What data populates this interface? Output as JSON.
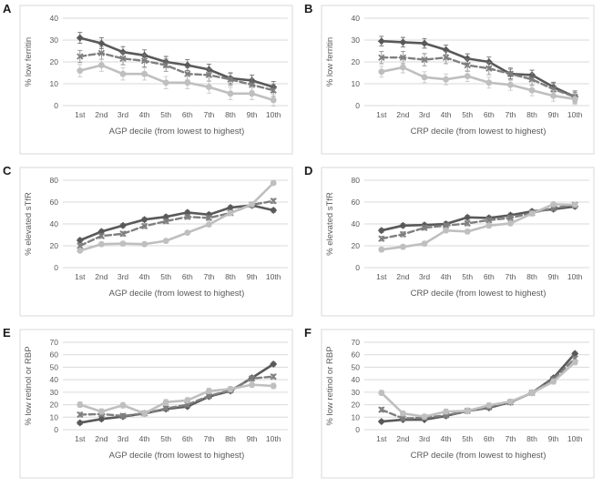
{
  "figure_background": "#ffffff",
  "palette": {
    "series_dark": "#595959",
    "series_medium": "#7f7f7f",
    "series_light": "#bfbfbf",
    "gridline": "#d9d9d9",
    "chart_border": "#d9d9d9",
    "axis_text": "#595959",
    "panel_letter": "#1a1a1a"
  },
  "chart_data": [
    {
      "type": "line",
      "panel": "A",
      "xlabel": "AGP decile (from lowest to highest)",
      "ylabel": "% low ferritin",
      "ylim": [
        0,
        40
      ],
      "yticks": [
        0,
        10,
        20,
        30,
        40
      ],
      "grid": true,
      "legend": "none",
      "categories": [
        "1st",
        "2nd",
        "3rd",
        "4th",
        "5th",
        "6th",
        "7th",
        "8th",
        "9th",
        "10th"
      ],
      "series": [
        {
          "name": "series-1-dark-solid",
          "color": "#595959",
          "dash": "solid",
          "marker": "diamond",
          "err": 2.5,
          "values": [
            31,
            28.5,
            24.5,
            23,
            20,
            18.5,
            16.5,
            12.5,
            11.5,
            8.5
          ]
        },
        {
          "name": "series-2-medium-dashed",
          "color": "#7f7f7f",
          "dash": "dashed",
          "marker": "x",
          "err": 2.8,
          "values": [
            22.5,
            24,
            21.5,
            20.5,
            18.5,
            14.5,
            14,
            12,
            9.5,
            7
          ]
        },
        {
          "name": "series-3-light-solid",
          "color": "#bfbfbf",
          "dash": "solid",
          "marker": "circle",
          "err": 2.8,
          "values": [
            16,
            18.5,
            14.5,
            14.5,
            10.5,
            10.5,
            8.5,
            5.5,
            5.5,
            2.5
          ]
        }
      ]
    },
    {
      "type": "line",
      "panel": "B",
      "xlabel": "CRP decile (from lowest to highest)",
      "ylabel": "% low ferritin",
      "ylim": [
        0,
        40
      ],
      "yticks": [
        0,
        10,
        20,
        30,
        40
      ],
      "grid": true,
      "legend": "none",
      "categories": [
        "1st",
        "2nd",
        "3rd",
        "4th",
        "5th",
        "6th",
        "7th",
        "8th",
        "9th",
        "10th"
      ],
      "series": [
        {
          "name": "series-1-dark-solid",
          "color": "#595959",
          "dash": "solid",
          "marker": "diamond",
          "err": 2.2,
          "values": [
            29.5,
            29,
            28.5,
            25.5,
            21.5,
            20,
            14.5,
            14,
            8.5,
            4
          ]
        },
        {
          "name": "series-2-medium-dashed",
          "color": "#7f7f7f",
          "dash": "dashed",
          "marker": "x",
          "err": 2.8,
          "values": [
            22,
            22,
            21,
            22,
            18.5,
            17,
            14.5,
            12,
            7.5,
            4
          ]
        },
        {
          "name": "series-3-light-solid",
          "color": "#bfbfbf",
          "dash": "solid",
          "marker": "circle",
          "err": 2.5,
          "values": [
            15.5,
            17.5,
            13,
            12,
            13.5,
            10.5,
            9.5,
            7,
            4.5,
            3
          ]
        }
      ]
    },
    {
      "type": "line",
      "panel": "C",
      "xlabel": "AGP decile (from lowest to highest)",
      "ylabel": "% elevated sTfR",
      "ylim": [
        0,
        80
      ],
      "yticks": [
        0,
        20,
        40,
        60,
        80
      ],
      "grid": true,
      "legend": "none",
      "categories": [
        "1st",
        "2nd",
        "3rd",
        "4th",
        "5th",
        "6th",
        "7th",
        "8th",
        "9th",
        "10th"
      ],
      "series": [
        {
          "name": "series-1-dark-solid",
          "color": "#595959",
          "dash": "solid",
          "marker": "diamond",
          "err": 1.8,
          "values": [
            25,
            33,
            38.5,
            44,
            46.5,
            50.5,
            48.5,
            55,
            57,
            52.5
          ]
        },
        {
          "name": "series-2-medium-dashed",
          "color": "#7f7f7f",
          "dash": "dashed",
          "marker": "x",
          "err": 2.2,
          "values": [
            20,
            29,
            31,
            38,
            42.5,
            46.5,
            45.5,
            50,
            57.5,
            61
          ]
        },
        {
          "name": "series-3-light-solid",
          "color": "#bfbfbf",
          "dash": "solid",
          "marker": "circle",
          "err": 1.8,
          "values": [
            15.5,
            21.5,
            22,
            21.5,
            24.5,
            32,
            39.5,
            50,
            58,
            77.5
          ]
        }
      ]
    },
    {
      "type": "line",
      "panel": "D",
      "xlabel": "CRP decile (from lowest to highest)",
      "ylabel": "% elevated sTfR",
      "ylim": [
        0,
        80
      ],
      "yticks": [
        0,
        20,
        40,
        60,
        80
      ],
      "grid": true,
      "legend": "none",
      "categories": [
        "1st",
        "2nd",
        "3rd",
        "4th",
        "5th",
        "6th",
        "7th",
        "8th",
        "9th",
        "10th"
      ],
      "series": [
        {
          "name": "series-1-dark-solid",
          "color": "#595959",
          "dash": "solid",
          "marker": "diamond",
          "err": 1.8,
          "values": [
            34,
            38.5,
            39,
            40,
            46,
            45.5,
            48,
            51.5,
            53.5,
            56
          ]
        },
        {
          "name": "series-2-medium-dashed",
          "color": "#7f7f7f",
          "dash": "dashed",
          "marker": "x",
          "err": 2.2,
          "values": [
            26.5,
            30.5,
            36.5,
            38.5,
            40.5,
            43.5,
            45.5,
            50,
            54.5,
            57.5
          ]
        },
        {
          "name": "series-3-light-solid",
          "color": "#bfbfbf",
          "dash": "solid",
          "marker": "circle",
          "err": 2.0,
          "values": [
            16.5,
            19,
            22,
            34,
            33,
            38.5,
            40.5,
            49.5,
            58,
            57.5
          ]
        }
      ]
    },
    {
      "type": "line",
      "panel": "E",
      "xlabel": "AGP decile (from lowest to highest)",
      "ylabel": "% low retinol or RBP",
      "ylim": [
        0,
        70
      ],
      "yticks": [
        0,
        10,
        20,
        30,
        40,
        50,
        60,
        70
      ],
      "grid": true,
      "legend": "none",
      "categories": [
        "1st",
        "2nd",
        "3rd",
        "4th",
        "5th",
        "6th",
        "7th",
        "8th",
        "9th",
        "10th"
      ],
      "series": [
        {
          "name": "series-1-dark-solid",
          "color": "#595959",
          "dash": "solid",
          "marker": "diamond",
          "err": 1.5,
          "values": [
            5.5,
            8.5,
            10.5,
            13,
            16.5,
            18.5,
            26.5,
            31,
            41.5,
            52.5
          ]
        },
        {
          "name": "series-2-medium-dashed",
          "color": "#7f7f7f",
          "dash": "dashed",
          "marker": "x",
          "err": 1.8,
          "values": [
            12,
            12.5,
            11,
            13,
            17,
            20,
            27,
            31.5,
            41,
            42.5
          ]
        },
        {
          "name": "series-3-light-solid",
          "color": "#bfbfbf",
          "dash": "solid",
          "marker": "circle",
          "err": 2.2,
          "values": [
            20,
            14.5,
            19.5,
            13,
            22,
            23.5,
            31,
            32.5,
            36,
            35
          ]
        }
      ]
    },
    {
      "type": "line",
      "panel": "F",
      "xlabel": "CRP decile (from lowest to highest)",
      "ylabel": "% low retinol or RBP",
      "ylim": [
        0,
        70
      ],
      "yticks": [
        0,
        10,
        20,
        30,
        40,
        50,
        60,
        70
      ],
      "grid": true,
      "legend": "none",
      "categories": [
        "1st",
        "2nd",
        "3rd",
        "4th",
        "5th",
        "6th",
        "7th",
        "8th",
        "9th",
        "10th"
      ],
      "series": [
        {
          "name": "series-1-dark-solid",
          "color": "#595959",
          "dash": "solid",
          "marker": "diamond",
          "err": 1.2,
          "values": [
            6.5,
            8,
            8,
            11,
            15,
            17.5,
            22,
            29.5,
            41.5,
            61
          ]
        },
        {
          "name": "series-2-medium-dashed",
          "color": "#7f7f7f",
          "dash": "dashed",
          "marker": "x",
          "err": 1.8,
          "values": [
            16,
            9,
            9.5,
            11.5,
            15,
            18,
            22,
            29.5,
            40.5,
            57
          ]
        },
        {
          "name": "series-3-light-solid",
          "color": "#bfbfbf",
          "dash": "solid",
          "marker": "circle",
          "err": 2.0,
          "values": [
            29.5,
            13,
            10.5,
            14.5,
            15,
            19.5,
            22.5,
            29.5,
            38.5,
            54
          ]
        }
      ]
    }
  ]
}
